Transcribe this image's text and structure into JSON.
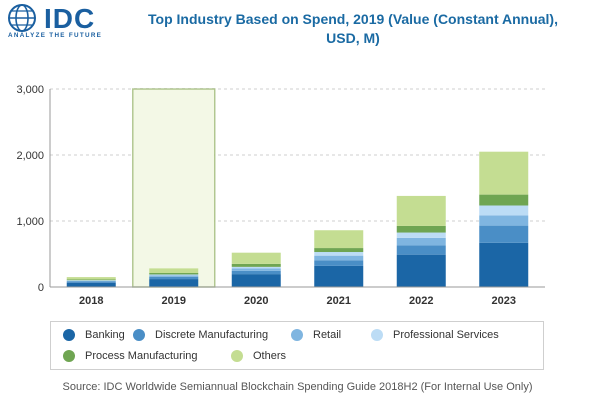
{
  "logo": {
    "name": "IDC",
    "tagline": "ANALYZE THE FUTURE"
  },
  "title_line1": "Top Industry Based on Spend, 2019 (Value (Constant Annual),",
  "title_line2": "USD, M)",
  "source": "Source: IDC Worldwide Semiannual Blockchain Spending Guide 2018H2 (For Internal Use Only)",
  "colors": {
    "Banking": "#1b66a6",
    "Discrete Manufacturing": "#4a8ec6",
    "Retail": "#7fb5e0",
    "Professional Services": "#bcdcf5",
    "Process Manufacturing": "#6fa552",
    "Others": "#c4dd92",
    "highlight": "#5d8a1f"
  },
  "chart_data": {
    "type": "bar",
    "stacked": true,
    "title": "Top Industry Based on Spend, 2019 (Value (Constant Annual), USD, M)",
    "categories": [
      "2018",
      "2019",
      "2020",
      "2021",
      "2022",
      "2023"
    ],
    "highlighted_category": "2019",
    "ylim": [
      0,
      3000
    ],
    "yticks": [
      0,
      1000,
      2000,
      3000
    ],
    "ytick_labels": [
      "0",
      "1,000",
      "2,000",
      "3,000"
    ],
    "grid": true,
    "legend_position": "bottom",
    "series": [
      {
        "name": "Banking",
        "values": [
          65,
          120,
          195,
          320,
          490,
          670
        ]
      },
      {
        "name": "Discrete Manufacturing",
        "values": [
          20,
          35,
          50,
          85,
          140,
          260
        ]
      },
      {
        "name": "Retail",
        "values": [
          10,
          20,
          35,
          70,
          115,
          155
        ]
      },
      {
        "name": "Professional Services",
        "values": [
          8,
          15,
          25,
          55,
          80,
          150
        ]
      },
      {
        "name": "Process Manufacturing",
        "values": [
          12,
          22,
          45,
          60,
          100,
          165
        ]
      },
      {
        "name": "Others",
        "values": [
          35,
          70,
          170,
          270,
          455,
          650
        ]
      }
    ]
  }
}
